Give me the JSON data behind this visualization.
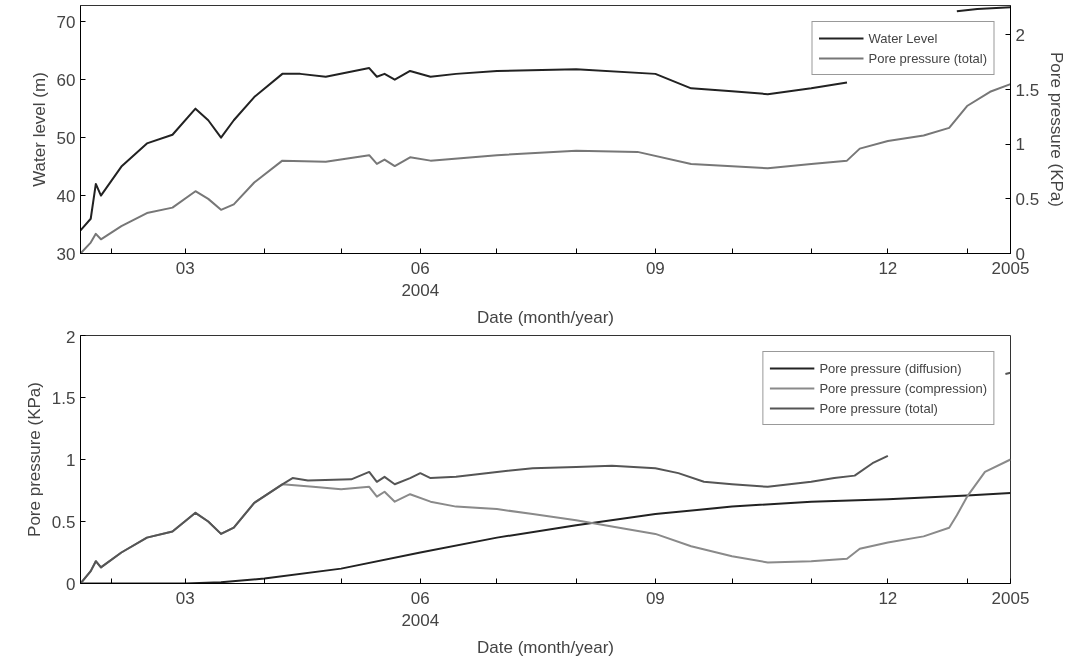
{
  "chart_data": [
    {
      "type": "line",
      "xlabel": "Date (month/year)",
      "ylabel": "Water level (m)",
      "y2label": "Pore pressure (KPa)",
      "xlim": [
        "2004-01-20",
        "2005-01-18"
      ],
      "xticks": [
        {
          "value": "2004-02-01",
          "label": null
        },
        {
          "value": "2004-03-01",
          "label": "03"
        },
        {
          "value": "2004-04-01",
          "label": null
        },
        {
          "value": "2004-05-01",
          "label": null
        },
        {
          "value": "2004-06-01",
          "label": "06\n2004"
        },
        {
          "value": "2004-07-01",
          "label": null
        },
        {
          "value": "2004-08-01",
          "label": null
        },
        {
          "value": "2004-09-01",
          "label": "09"
        },
        {
          "value": "2004-10-01",
          "label": null
        },
        {
          "value": "2004-11-01",
          "label": null
        },
        {
          "value": "2004-12-01",
          "label": "12"
        },
        {
          "value": "2005-01-01",
          "label": null
        },
        {
          "value": "2005-01-18",
          "label": "2005"
        }
      ],
      "ylim": [
        30,
        72.8
      ],
      "yticks": [
        30,
        40,
        50,
        60,
        70
      ],
      "y2lim": [
        0,
        2.27
      ],
      "y2ticks": [
        0,
        0.5,
        1,
        1.5,
        2
      ],
      "legend": "top right",
      "grid": false,
      "series": [
        {
          "name": "Water Level",
          "color": "#222222",
          "x": [
            "2004-01-20",
            "2004-01-24",
            "2004-01-26",
            "2004-01-28",
            "2004-02-05",
            "2004-02-15",
            "2004-02-25",
            "2004-03-05",
            "2004-03-10",
            "2004-03-15",
            "2004-03-20",
            "2004-03-28",
            "2004-04-08",
            "2004-04-15",
            "2004-04-25",
            "2004-05-12",
            "2004-05-15",
            "2004-05-18",
            "2004-05-22",
            "2004-05-28",
            "2004-06-05",
            "2004-06-15",
            "2004-07-01",
            "2004-08-01",
            "2004-09-01",
            "2004-09-15",
            "2004-10-01",
            "2004-10-15",
            "2004-11-01",
            "2004-11-15",
            "2004-11-20",
            "2004-12-28",
            "2005-01-05",
            "2005-01-18"
          ],
          "values": [
            34,
            36,
            42,
            40,
            45,
            49,
            50.5,
            55,
            53,
            50,
            53,
            57,
            61,
            61,
            60.5,
            62,
            60.5,
            61,
            60,
            61.5,
            60.5,
            61,
            61.5,
            61.8,
            61,
            58.5,
            58,
            57.5,
            58.5,
            59.5,
            null,
            71.8,
            72.2,
            72.5
          ]
        },
        {
          "name": "Pore pressure (total)",
          "color": "#777777",
          "axis": "y2",
          "x": [
            "2004-01-20",
            "2004-01-24",
            "2004-01-26",
            "2004-01-28",
            "2004-02-05",
            "2004-02-15",
            "2004-02-25",
            "2004-03-05",
            "2004-03-10",
            "2004-03-15",
            "2004-03-20",
            "2004-03-28",
            "2004-04-08",
            "2004-04-25",
            "2004-05-12",
            "2004-05-15",
            "2004-05-18",
            "2004-05-22",
            "2004-05-28",
            "2004-06-05",
            "2004-07-01",
            "2004-08-01",
            "2004-08-25",
            "2004-09-15",
            "2004-10-15",
            "2004-11-01",
            "2004-11-15",
            "2004-11-20",
            "2004-12-01",
            "2004-12-15",
            "2004-12-25",
            "2005-01-01",
            "2005-01-10",
            "2005-01-18"
          ],
          "values": [
            0,
            0.1,
            0.18,
            0.13,
            0.25,
            0.37,
            0.42,
            0.57,
            0.5,
            0.4,
            0.45,
            0.65,
            0.85,
            0.84,
            0.9,
            0.82,
            0.86,
            0.8,
            0.88,
            0.85,
            0.9,
            0.94,
            0.93,
            0.82,
            0.78,
            0.82,
            0.85,
            0.96,
            1.03,
            1.08,
            1.15,
            1.35,
            1.48,
            1.55
          ]
        }
      ]
    },
    {
      "type": "line",
      "xlabel": "Date (month/year)",
      "ylabel": "Pore pressure (KPa)",
      "xlim": [
        "2004-01-20",
        "2005-01-18"
      ],
      "xticks": [
        {
          "value": "2004-02-01",
          "label": null
        },
        {
          "value": "2004-03-01",
          "label": "03"
        },
        {
          "value": "2004-04-01",
          "label": null
        },
        {
          "value": "2004-05-01",
          "label": null
        },
        {
          "value": "2004-06-01",
          "label": "06\n2004"
        },
        {
          "value": "2004-07-01",
          "label": null
        },
        {
          "value": "2004-08-01",
          "label": null
        },
        {
          "value": "2004-09-01",
          "label": "09"
        },
        {
          "value": "2004-10-01",
          "label": null
        },
        {
          "value": "2004-11-01",
          "label": null
        },
        {
          "value": "2004-12-01",
          "label": "12"
        },
        {
          "value": "2005-01-01",
          "label": null
        },
        {
          "value": "2005-01-18",
          "label": "2005"
        }
      ],
      "ylim": [
        0,
        2
      ],
      "yticks": [
        0,
        0.5,
        1,
        1.5,
        2
      ],
      "legend": "top right",
      "grid": false,
      "series": [
        {
          "name": "Pore pressure (diffusion)",
          "color": "#222222",
          "x": [
            "2004-01-20",
            "2004-03-01",
            "2004-03-15",
            "2004-04-01",
            "2004-05-01",
            "2004-06-01",
            "2004-07-01",
            "2004-08-01",
            "2004-09-01",
            "2004-10-01",
            "2004-11-01",
            "2004-12-01",
            "2005-01-01",
            "2005-01-18"
          ],
          "values": [
            0,
            0,
            0.01,
            0.04,
            0.12,
            0.25,
            0.37,
            0.47,
            0.56,
            0.62,
            0.66,
            0.68,
            0.71,
            0.73
          ]
        },
        {
          "name": "Pore pressure (compression)",
          "color": "#8a8a8a",
          "x": [
            "2004-01-20",
            "2004-01-24",
            "2004-01-26",
            "2004-01-28",
            "2004-02-05",
            "2004-02-15",
            "2004-02-25",
            "2004-03-05",
            "2004-03-10",
            "2004-03-15",
            "2004-03-20",
            "2004-03-28",
            "2004-04-08",
            "2004-04-20",
            "2004-05-01",
            "2004-05-12",
            "2004-05-15",
            "2004-05-18",
            "2004-05-22",
            "2004-05-28",
            "2004-06-05",
            "2004-06-15",
            "2004-07-01",
            "2004-07-15",
            "2004-08-01",
            "2004-08-15",
            "2004-09-01",
            "2004-09-15",
            "2004-10-01",
            "2004-10-15",
            "2004-11-01",
            "2004-11-15",
            "2004-11-20",
            "2004-12-01",
            "2004-12-15",
            "2004-12-25",
            "2004-12-28",
            "2005-01-01",
            "2005-01-08",
            "2005-01-18"
          ],
          "values": [
            0,
            0.1,
            0.18,
            0.13,
            0.25,
            0.37,
            0.42,
            0.57,
            0.5,
            0.4,
            0.45,
            0.65,
            0.8,
            0.78,
            0.76,
            0.78,
            0.7,
            0.74,
            0.66,
            0.72,
            0.66,
            0.62,
            0.6,
            0.56,
            0.51,
            0.46,
            0.4,
            0.3,
            0.22,
            0.17,
            0.18,
            0.2,
            0.28,
            0.33,
            0.38,
            0.45,
            0.55,
            0.7,
            0.9,
            1.0
          ]
        },
        {
          "name": "Pore pressure (total)",
          "color": "#555555",
          "x": [
            "2004-01-20",
            "2004-01-24",
            "2004-01-26",
            "2004-01-28",
            "2004-02-05",
            "2004-02-15",
            "2004-02-25",
            "2004-03-05",
            "2004-03-10",
            "2004-03-15",
            "2004-03-20",
            "2004-03-28",
            "2004-04-08",
            "2004-04-12",
            "2004-04-18",
            "2004-05-05",
            "2004-05-12",
            "2004-05-15",
            "2004-05-18",
            "2004-05-22",
            "2004-05-28",
            "2004-06-01",
            "2004-06-05",
            "2004-06-15",
            "2004-07-01",
            "2004-07-15",
            "2004-08-01",
            "2004-08-15",
            "2004-09-01",
            "2004-09-10",
            "2004-09-20",
            "2004-10-01",
            "2004-10-15",
            "2004-11-01",
            "2004-11-10",
            "2004-11-18",
            "2004-11-25",
            "2004-12-01",
            "2004-12-05",
            "2005-01-16",
            "2005-01-18"
          ],
          "values": [
            0,
            0.1,
            0.18,
            0.13,
            0.25,
            0.37,
            0.42,
            0.57,
            0.5,
            0.4,
            0.45,
            0.65,
            0.8,
            0.85,
            0.83,
            0.84,
            0.9,
            0.82,
            0.86,
            0.8,
            0.85,
            0.89,
            0.85,
            0.86,
            0.9,
            0.93,
            0.94,
            0.95,
            0.93,
            0.89,
            0.82,
            0.8,
            0.78,
            0.82,
            0.85,
            0.87,
            0.97,
            1.03,
            null,
            1.69,
            1.7
          ]
        }
      ]
    }
  ]
}
